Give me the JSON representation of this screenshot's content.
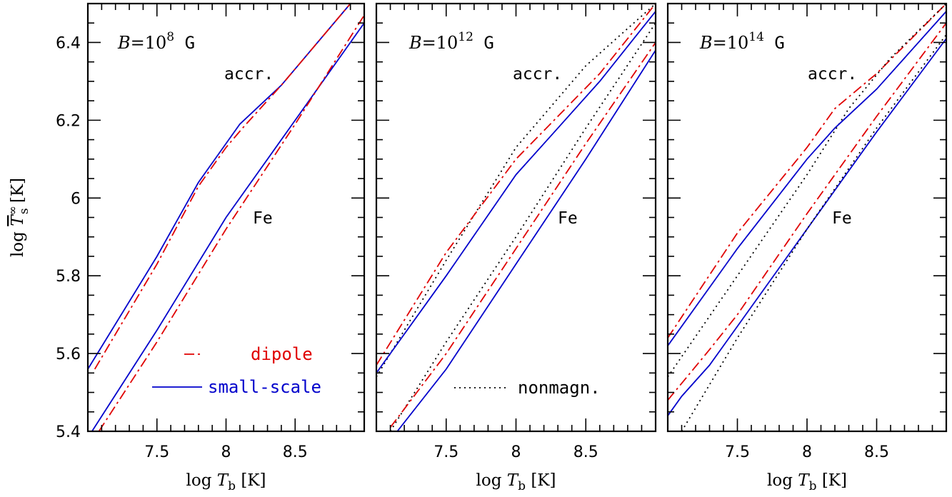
{
  "colors": {
    "dipole": "#e00000",
    "small_scale": "#0000cc",
    "nonmagn": "#000000"
  },
  "chart_data": [
    {
      "type": "line",
      "panel_label": {
        "prefix": "B",
        "base": "=10",
        "exp": "8",
        "unit": "G"
      },
      "xlabel": {
        "prefix": "log",
        "var": "T",
        "sub": "b",
        "unit": "[K]"
      },
      "ylabel": {
        "prefix": "log",
        "var": "T",
        "sup": "∞",
        "sub": "s",
        "unit": "[K]"
      },
      "xlim": [
        7.0,
        9.0
      ],
      "ylim": [
        5.4,
        6.5
      ],
      "xticks": [
        "7.5",
        "8",
        "8.5"
      ],
      "yticks": [
        "5.4",
        "5.6",
        "5.8",
        "6",
        "6.2",
        "6.4"
      ],
      "annotations": {
        "accr": "accr.",
        "fe": "Fe"
      },
      "legend": [
        {
          "label": "dipole",
          "style": "dashdot",
          "color_key": "dipole"
        },
        {
          "label": "small-scale",
          "style": "solid",
          "color_key": "small_scale"
        }
      ],
      "series": [
        {
          "name": "small-scale",
          "group": "accr",
          "style": "solid",
          "color_key": "small_scale",
          "x": [
            7.0,
            7.5,
            7.8,
            8.0,
            8.1,
            8.4,
            8.9
          ],
          "y": [
            5.56,
            5.85,
            6.04,
            6.14,
            6.19,
            6.29,
            6.5
          ]
        },
        {
          "name": "dipole",
          "group": "accr",
          "style": "dashdot",
          "color_key": "dipole",
          "x": [
            7.05,
            7.5,
            7.8,
            8.0,
            8.12,
            8.4,
            8.9
          ],
          "y": [
            5.56,
            5.83,
            6.03,
            6.13,
            6.18,
            6.29,
            6.5
          ]
        },
        {
          "name": "small-scale",
          "group": "fe",
          "style": "solid",
          "color_key": "small_scale",
          "x": [
            7.03,
            7.5,
            8.0,
            8.5,
            9.0
          ],
          "y": [
            5.4,
            5.66,
            5.95,
            6.2,
            6.45
          ]
        },
        {
          "name": "dipole",
          "group": "fe",
          "style": "dashdot",
          "color_key": "dipole",
          "x": [
            7.08,
            7.5,
            8.0,
            8.5,
            9.0
          ],
          "y": [
            5.4,
            5.63,
            5.92,
            6.19,
            6.47
          ]
        }
      ]
    },
    {
      "type": "line",
      "panel_label": {
        "prefix": "B",
        "base": "=10",
        "exp": "12",
        "unit": "G"
      },
      "xlabel": {
        "prefix": "log",
        "var": "T",
        "sub": "b",
        "unit": "[K]"
      },
      "xlim": [
        7.0,
        9.0
      ],
      "ylim": [
        5.4,
        6.5
      ],
      "xticks": [
        "7.5",
        "8",
        "8.5"
      ],
      "annotations": {
        "accr": "accr.",
        "fe": "Fe"
      },
      "legend": [
        {
          "label": "nonmagn.",
          "style": "dotted",
          "color_key": "nonmagn"
        }
      ],
      "series": [
        {
          "name": "nonmagn.",
          "group": "accr",
          "style": "dotted",
          "color_key": "nonmagn",
          "x": [
            7.0,
            7.5,
            8.0,
            8.5,
            9.0
          ],
          "y": [
            5.54,
            5.84,
            6.13,
            6.34,
            6.5
          ]
        },
        {
          "name": "dipole",
          "group": "accr",
          "style": "dashdot",
          "color_key": "dipole",
          "x": [
            7.0,
            7.5,
            8.0,
            8.3,
            8.6,
            9.0
          ],
          "y": [
            5.57,
            5.86,
            6.1,
            6.21,
            6.32,
            6.5
          ]
        },
        {
          "name": "small-scale",
          "group": "accr",
          "style": "solid",
          "color_key": "small_scale",
          "x": [
            7.0,
            7.5,
            8.0,
            8.3,
            8.6,
            9.0
          ],
          "y": [
            5.55,
            5.8,
            6.06,
            6.18,
            6.3,
            6.48
          ]
        },
        {
          "name": "nonmagn.",
          "group": "fe",
          "style": "dotted",
          "color_key": "nonmagn",
          "x": [
            7.1,
            7.5,
            8.0,
            8.5,
            9.0
          ],
          "y": [
            5.4,
            5.63,
            5.9,
            6.18,
            6.45
          ]
        },
        {
          "name": "dipole",
          "group": "fe",
          "style": "dashdot",
          "color_key": "dipole",
          "x": [
            7.1,
            7.5,
            8.0,
            8.5,
            9.0
          ],
          "y": [
            5.41,
            5.6,
            5.87,
            6.14,
            6.4
          ]
        },
        {
          "name": "small-scale",
          "group": "fe",
          "style": "solid",
          "color_key": "small_scale",
          "x": [
            7.15,
            7.5,
            8.0,
            8.5,
            9.0
          ],
          "y": [
            5.4,
            5.56,
            5.83,
            6.1,
            6.38
          ]
        }
      ]
    },
    {
      "type": "line",
      "panel_label": {
        "prefix": "B",
        "base": "=10",
        "exp": "14",
        "unit": "G"
      },
      "xlabel": {
        "prefix": "log",
        "var": "T",
        "sub": "b",
        "unit": "[K]"
      },
      "xlim": [
        7.0,
        9.0
      ],
      "ylim": [
        5.4,
        6.5
      ],
      "xticks": [
        "7.5",
        "8",
        "8.5"
      ],
      "annotations": {
        "accr": "accr.",
        "fe": "Fe"
      },
      "legend": [],
      "series": [
        {
          "name": "dipole",
          "group": "accr",
          "style": "dashdot",
          "color_key": "dipole",
          "x": [
            7.0,
            7.5,
            8.0,
            8.2,
            8.5,
            9.0
          ],
          "y": [
            5.64,
            5.91,
            6.13,
            6.23,
            6.32,
            6.5
          ]
        },
        {
          "name": "nonmagn.",
          "group": "accr",
          "style": "dotted",
          "color_key": "nonmagn",
          "x": [
            7.0,
            7.5,
            8.0,
            8.3,
            8.6,
            9.0
          ],
          "y": [
            5.54,
            5.8,
            6.06,
            6.23,
            6.36,
            6.5
          ]
        },
        {
          "name": "small-scale",
          "group": "accr",
          "style": "solid",
          "color_key": "small_scale",
          "x": [
            7.0,
            7.5,
            8.0,
            8.2,
            8.5,
            9.0
          ],
          "y": [
            5.62,
            5.87,
            6.1,
            6.18,
            6.28,
            6.48
          ]
        },
        {
          "name": "dipole",
          "group": "fe",
          "style": "dashdot",
          "color_key": "dipole",
          "x": [
            7.0,
            7.3,
            7.5,
            8.0,
            8.5,
            9.0
          ],
          "y": [
            5.48,
            5.61,
            5.7,
            5.96,
            6.21,
            6.45
          ]
        },
        {
          "name": "small-scale",
          "group": "fe",
          "style": "solid",
          "color_key": "small_scale",
          "x": [
            7.0,
            7.1,
            7.3,
            7.5,
            8.0,
            8.5,
            9.0
          ],
          "y": [
            5.44,
            5.49,
            5.57,
            5.67,
            5.92,
            6.17,
            6.41
          ]
        },
        {
          "name": "nonmagn.",
          "group": "fe",
          "style": "dotted",
          "color_key": "nonmagn",
          "x": [
            7.1,
            7.5,
            8.0,
            8.5,
            9.0
          ],
          "y": [
            5.4,
            5.64,
            5.92,
            6.18,
            6.42
          ]
        }
      ]
    }
  ]
}
